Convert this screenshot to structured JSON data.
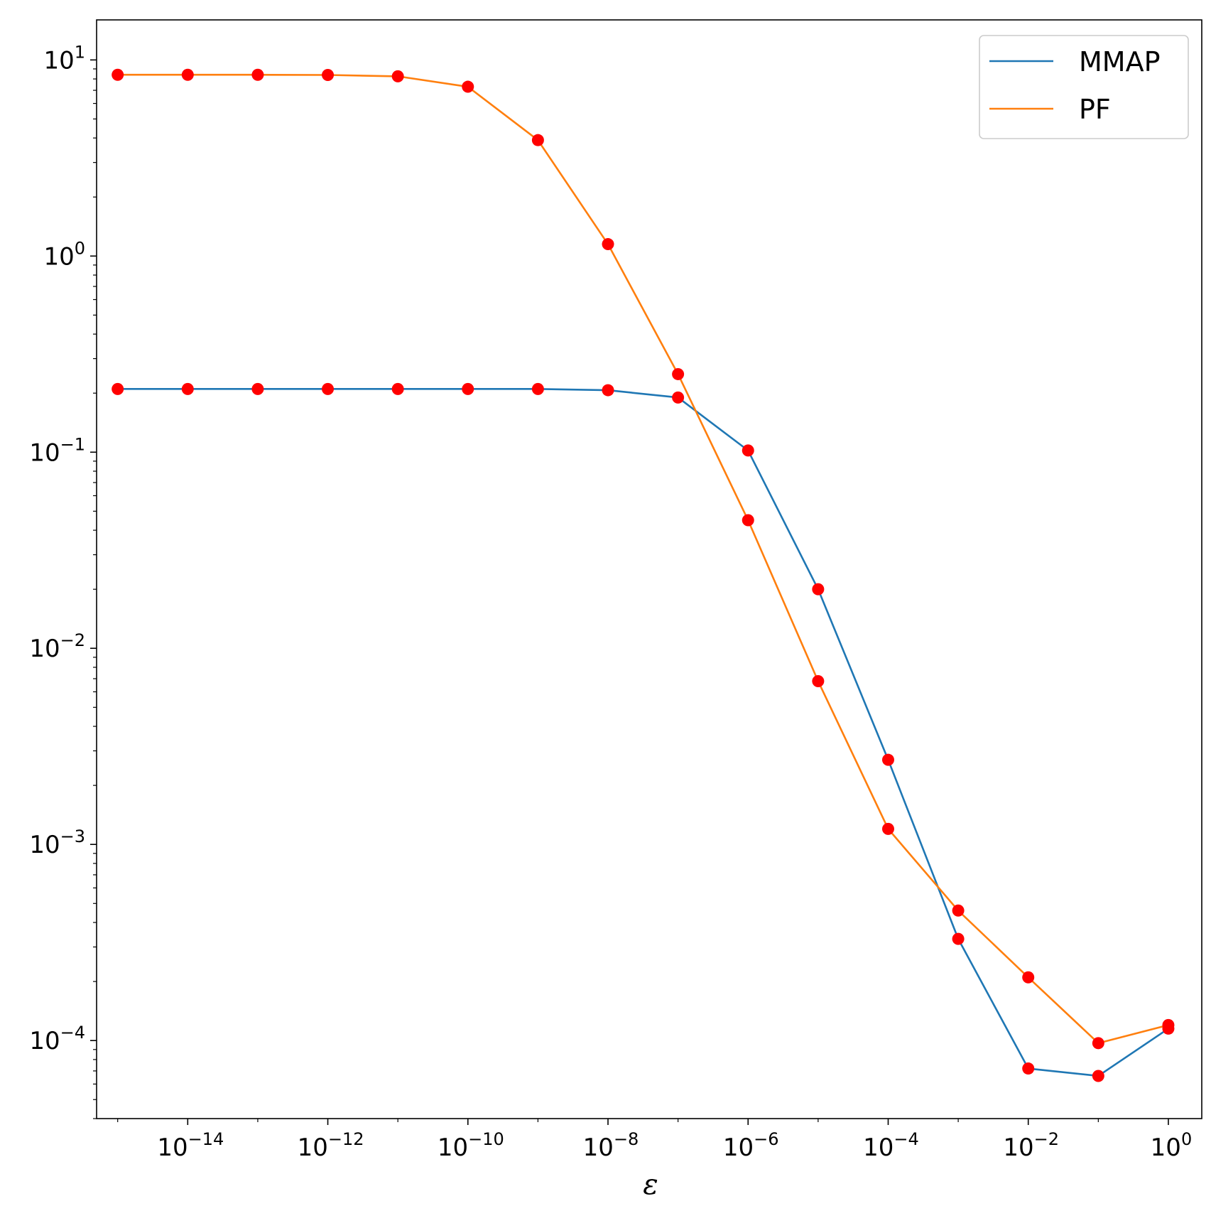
{
  "chart_data": {
    "type": "line",
    "x_scale": "log",
    "y_scale": "log",
    "xlabel": "ε",
    "ylabel": "",
    "title": "",
    "xlim": [
      5e-16,
      3
    ],
    "ylim": [
      4e-05,
      16
    ],
    "x_ticks": [
      {
        "value": 1e-14,
        "base": "10",
        "exp": "−14"
      },
      {
        "value": 1e-12,
        "base": "10",
        "exp": "−12"
      },
      {
        "value": 1e-10,
        "base": "10",
        "exp": "−10"
      },
      {
        "value": 1e-08,
        "base": "10",
        "exp": "−8"
      },
      {
        "value": 1e-06,
        "base": "10",
        "exp": "−6"
      },
      {
        "value": 0.0001,
        "base": "10",
        "exp": "−4"
      },
      {
        "value": 0.01,
        "base": "10",
        "exp": "−2"
      },
      {
        "value": 1,
        "base": "10",
        "exp": "0"
      }
    ],
    "y_ticks": [
      {
        "value": 10,
        "base": "10",
        "exp": "1"
      },
      {
        "value": 1,
        "base": "10",
        "exp": "0"
      },
      {
        "value": 0.1,
        "base": "10",
        "exp": "−1"
      },
      {
        "value": 0.01,
        "base": "10",
        "exp": "−2"
      },
      {
        "value": 0.001,
        "base": "10",
        "exp": "−3"
      },
      {
        "value": 0.0001,
        "base": "10",
        "exp": "−4"
      }
    ],
    "grid": false,
    "legend_position": "top-right",
    "marker_color": "#ff0000",
    "x": [
      1e-15,
      1e-14,
      1e-13,
      1e-12,
      1e-11,
      1e-10,
      1e-09,
      1e-08,
      1e-07,
      1e-06,
      1e-05,
      0.0001,
      0.001,
      0.01,
      0.1,
      1
    ],
    "series": [
      {
        "name": "MMAP",
        "color": "#1f77b4",
        "values": [
          0.21,
          0.21,
          0.21,
          0.21,
          0.21,
          0.21,
          0.21,
          0.207,
          0.19,
          0.102,
          0.02,
          0.0027,
          0.00033,
          7.2e-05,
          6.6e-05,
          0.000115
        ]
      },
      {
        "name": "PF",
        "color": "#ff7f0e",
        "values": [
          8.4,
          8.4,
          8.4,
          8.38,
          8.25,
          7.3,
          3.9,
          1.15,
          0.25,
          0.045,
          0.0068,
          0.0012,
          0.00046,
          0.00021,
          9.7e-05,
          0.00012
        ]
      }
    ]
  }
}
